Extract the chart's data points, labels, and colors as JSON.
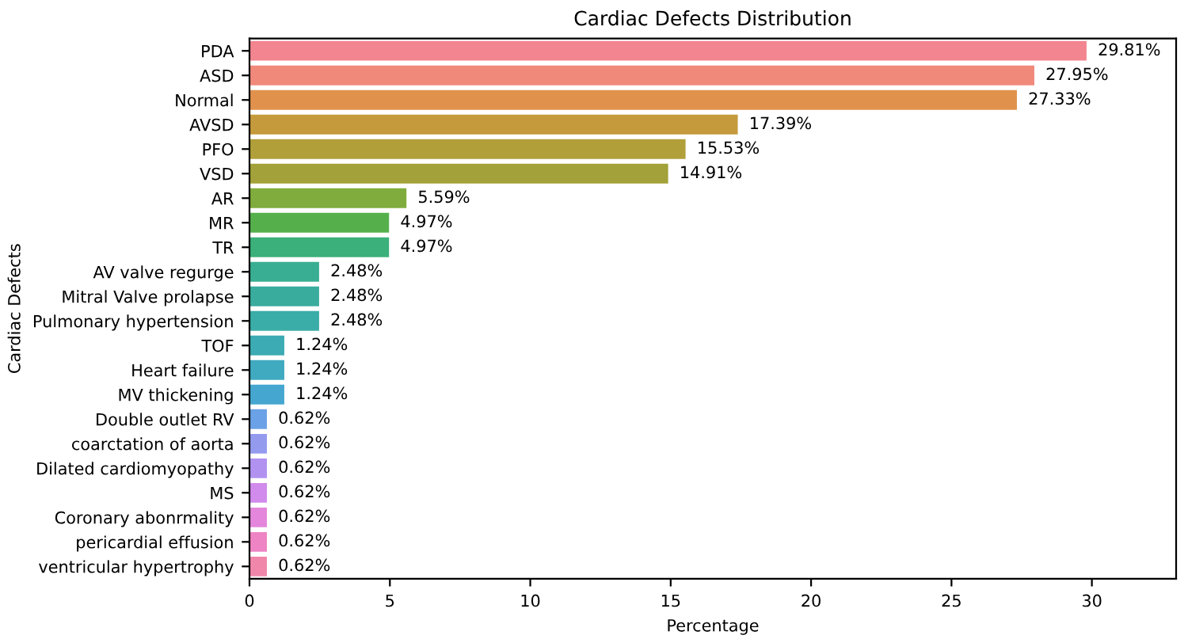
{
  "chart_data": {
    "type": "bar",
    "orientation": "horizontal",
    "title": "Cardiac Defects Distribution",
    "xlabel": "Percentage",
    "ylabel": "Cardiac Defects",
    "categories": [
      "PDA",
      "ASD",
      "Normal",
      "AVSD",
      "PFO",
      "VSD",
      "AR",
      "MR",
      "TR",
      "AV valve regurge",
      "Mitral Valve prolapse",
      "Pulmonary hypertension",
      "TOF",
      "Heart failure",
      "MV thickening",
      "Double outlet RV",
      "coarctation of aorta",
      "Dilated cardiomyopathy",
      "MS",
      "Coronary abonrmality",
      "pericardial effusion",
      "ventricular hypertrophy"
    ],
    "values": [
      29.81,
      27.95,
      27.33,
      17.39,
      15.53,
      14.91,
      5.59,
      4.97,
      4.97,
      2.48,
      2.48,
      2.48,
      1.24,
      1.24,
      1.24,
      0.62,
      0.62,
      0.62,
      0.62,
      0.62,
      0.62,
      0.62
    ],
    "value_labels": [
      "29.81%",
      "27.95%",
      "27.33%",
      "17.39%",
      "15.53%",
      "14.91%",
      "5.59%",
      "4.97%",
      "4.97%",
      "2.48%",
      "2.48%",
      "2.48%",
      "1.24%",
      "1.24%",
      "1.24%",
      "0.62%",
      "0.62%",
      "0.62%",
      "0.62%",
      "0.62%",
      "0.62%",
      "0.62%"
    ],
    "colors": [
      "#f28590",
      "#f0897a",
      "#e0924d",
      "#c59a3c",
      "#b19f3a",
      "#a3a23a",
      "#7fac3c",
      "#55b04c",
      "#3bb07a",
      "#3aae92",
      "#3aac9e",
      "#3bada8",
      "#3dabb3",
      "#40aac0",
      "#45a7d0",
      "#6ba1e6",
      "#949bef",
      "#b192f0",
      "#d18bec",
      "#e487dc",
      "#ee84c3",
      "#f087ab"
    ],
    "xlim": [
      0,
      33
    ],
    "xticks": [
      0,
      5,
      10,
      15,
      20,
      25,
      30
    ],
    "grid": false,
    "legend": false
  }
}
